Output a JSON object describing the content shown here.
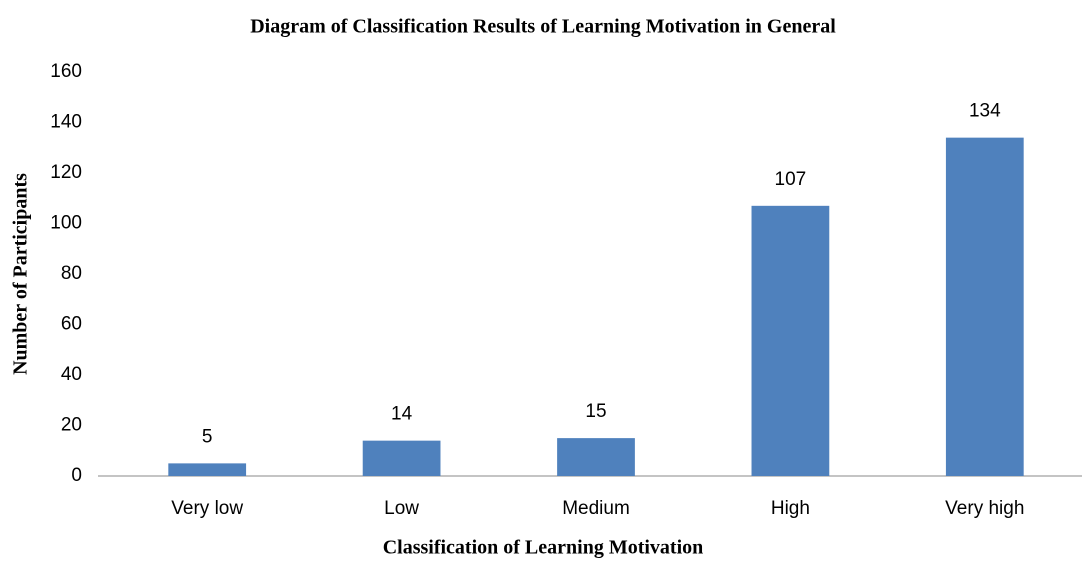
{
  "chart_data": {
    "type": "bar",
    "title": "Diagram of Classification Results of Learning Motivation in General",
    "x_label": "Classification of Learning Motivation",
    "y_label": "Number of Participants",
    "categories": [
      "Very low",
      "Low",
      "Medium",
      "High",
      "Very high"
    ],
    "values": [
      5,
      14,
      15,
      107,
      134
    ],
    "color": "#4f81bd",
    "ylim": [
      0,
      160
    ],
    "yticks": [
      0,
      20,
      40,
      60,
      80,
      100,
      120,
      140,
      160
    ],
    "grid": false
  }
}
